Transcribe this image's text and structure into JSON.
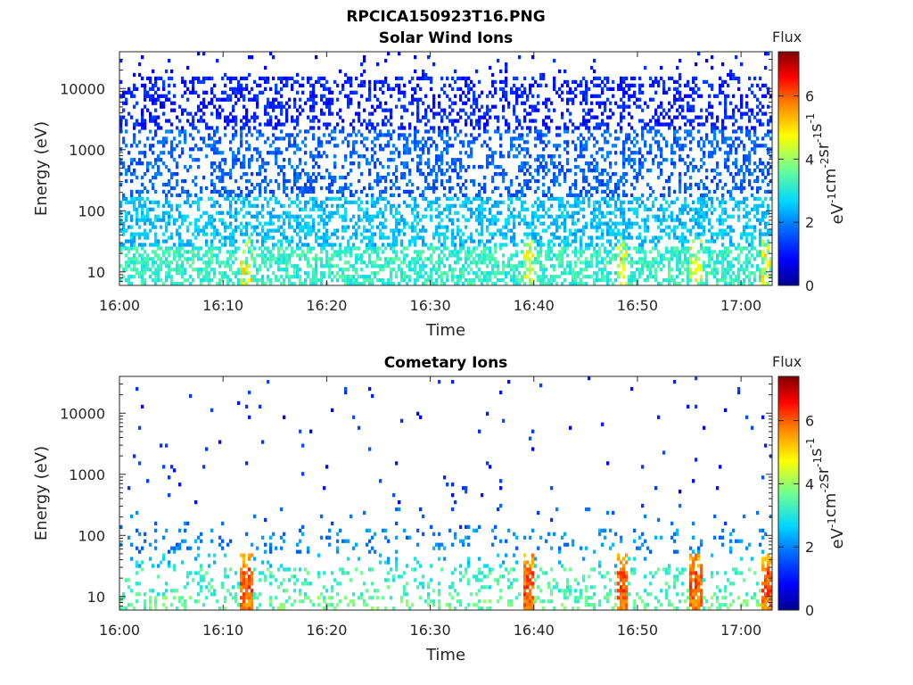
{
  "figure": {
    "main_title": "RPCICA150923T16.PNG",
    "colorbar_title": "Flux",
    "colorbar_unit_base": "eV",
    "colorbar_unit_parts": [
      {
        "t": "eV",
        "sup": "-1"
      },
      {
        "t": "cm",
        "sup": "-2"
      },
      {
        "t": "sr",
        "sup": "-1"
      },
      {
        "t": "s",
        "sup": "-1"
      }
    ]
  },
  "chart_data": [
    {
      "type": "heatmap",
      "title": "Solar Wind Ions",
      "xlabel": "Time",
      "ylabel": "Energy (eV)",
      "x_tick_labels": [
        "16:00",
        "16:10",
        "16:20",
        "16:30",
        "16:40",
        "16:50",
        "17:00"
      ],
      "x_range_minutes": [
        0,
        63
      ],
      "y_scale": "log",
      "y_tick_labels": [
        "10",
        "100",
        "1000",
        "10000"
      ],
      "y_range": [
        6,
        40000
      ],
      "colorbar_ticks": [
        "0",
        "2",
        "4",
        "6"
      ],
      "colorbar_range": [
        0,
        7.4
      ],
      "colormap": [
        "#00008f",
        "#0000ff",
        "#0080ff",
        "#00ffff",
        "#80ff80",
        "#ffff00",
        "#ff8000",
        "#ff0000",
        "#800000"
      ],
      "regime": "solar"
    },
    {
      "type": "heatmap",
      "title": "Cometary Ions",
      "xlabel": "Time",
      "ylabel": "Energy (eV)",
      "x_tick_labels": [
        "16:00",
        "16:10",
        "16:20",
        "16:30",
        "16:40",
        "16:50",
        "17:00"
      ],
      "x_range_minutes": [
        0,
        63
      ],
      "y_scale": "log",
      "y_tick_labels": [
        "10",
        "100",
        "1000",
        "10000"
      ],
      "y_range": [
        6,
        40000
      ],
      "colorbar_ticks": [
        "0",
        "2",
        "4",
        "6"
      ],
      "colorbar_range": [
        0,
        7.4
      ],
      "colormap": [
        "#00008f",
        "#0000ff",
        "#0080ff",
        "#00ffff",
        "#80ff80",
        "#ffff00",
        "#ff8000",
        "#ff0000",
        "#800000"
      ],
      "regime": "cometary"
    }
  ]
}
